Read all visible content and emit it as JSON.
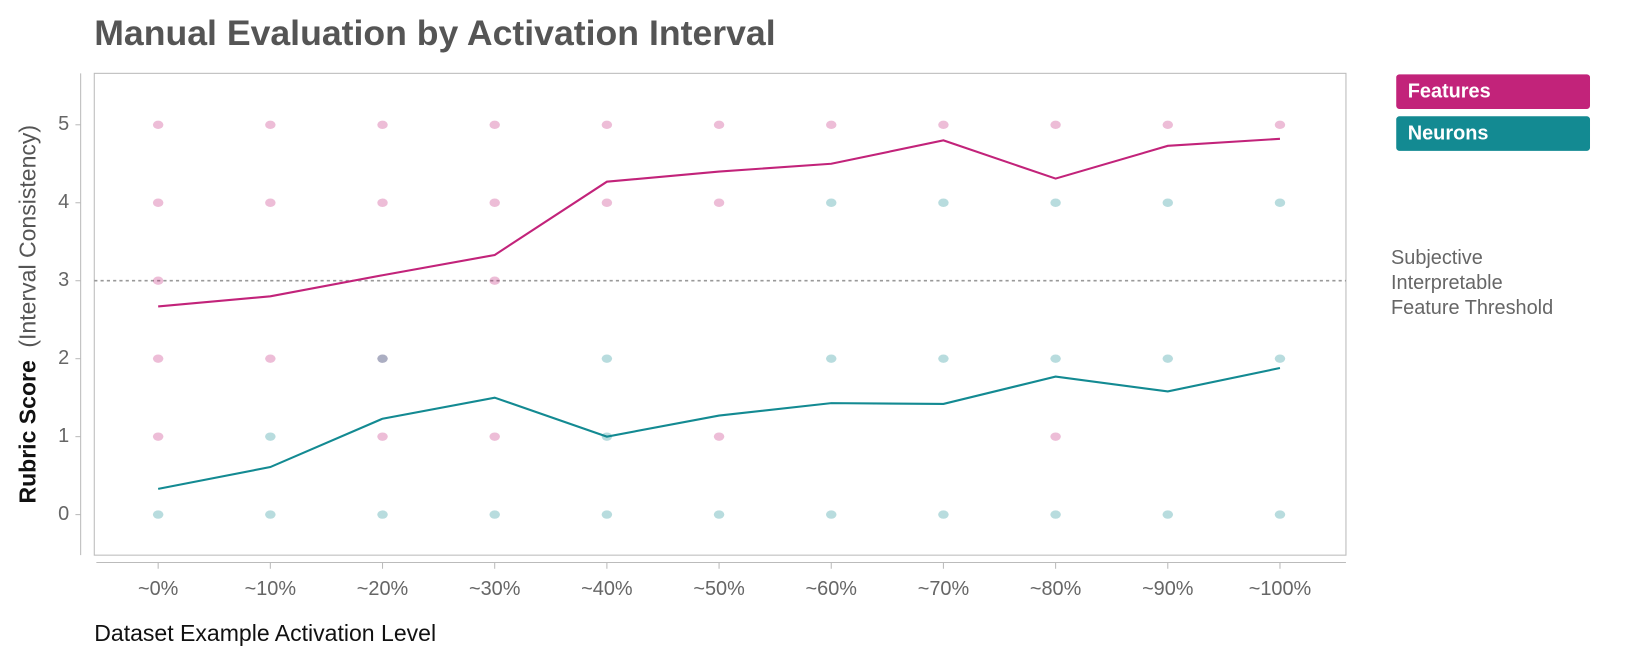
{
  "chart_data": {
    "type": "line",
    "title": "Manual Evaluation by Activation Interval",
    "xlabel": "Dataset Example Activation Level",
    "ylabel": "Rubric Score",
    "ylabel_note": "(Interval Consistency)",
    "categories": [
      "~0%",
      "~10%",
      "~20%",
      "~30%",
      "~40%",
      "~50%",
      "~60%",
      "~70%",
      "~80%",
      "~90%",
      "~100%"
    ],
    "ylim": [
      -0.52,
      5.66
    ],
    "yticks": [
      0,
      1,
      2,
      3,
      4,
      5
    ],
    "threshold": {
      "value": 3,
      "label": [
        "Subjective",
        "Interpretable",
        "Feature Threshold"
      ]
    },
    "series": [
      {
        "name": "Features",
        "color": "#c2237a",
        "values": [
          2.67,
          2.8,
          3.07,
          3.33,
          4.27,
          4.4,
          4.5,
          4.8,
          4.31,
          4.73,
          4.82
        ],
        "ratings": [
          [
            5,
            4,
            3,
            2,
            1
          ],
          [
            5,
            4,
            2
          ],
          [
            5,
            4,
            2,
            1
          ],
          [
            5,
            4,
            3,
            1
          ],
          [
            5,
            4
          ],
          [
            5,
            4,
            1
          ],
          [
            5
          ],
          [
            5
          ],
          [
            5,
            1
          ],
          [
            5
          ],
          [
            5
          ]
        ]
      },
      {
        "name": "Neurons",
        "color": "#138a92",
        "values": [
          0.33,
          0.61,
          1.23,
          1.5,
          1.0,
          1.27,
          1.43,
          1.42,
          1.77,
          1.58,
          1.88
        ],
        "ratings": [
          [
            0
          ],
          [
            0,
            1
          ],
          [
            0,
            2
          ],
          [
            0
          ],
          [
            0,
            1,
            2
          ],
          [
            0
          ],
          [
            0,
            2,
            4
          ],
          [
            0,
            2,
            4
          ],
          [
            0,
            2,
            4
          ],
          [
            0,
            2,
            4
          ],
          [
            0,
            2,
            4
          ]
        ]
      }
    ]
  }
}
